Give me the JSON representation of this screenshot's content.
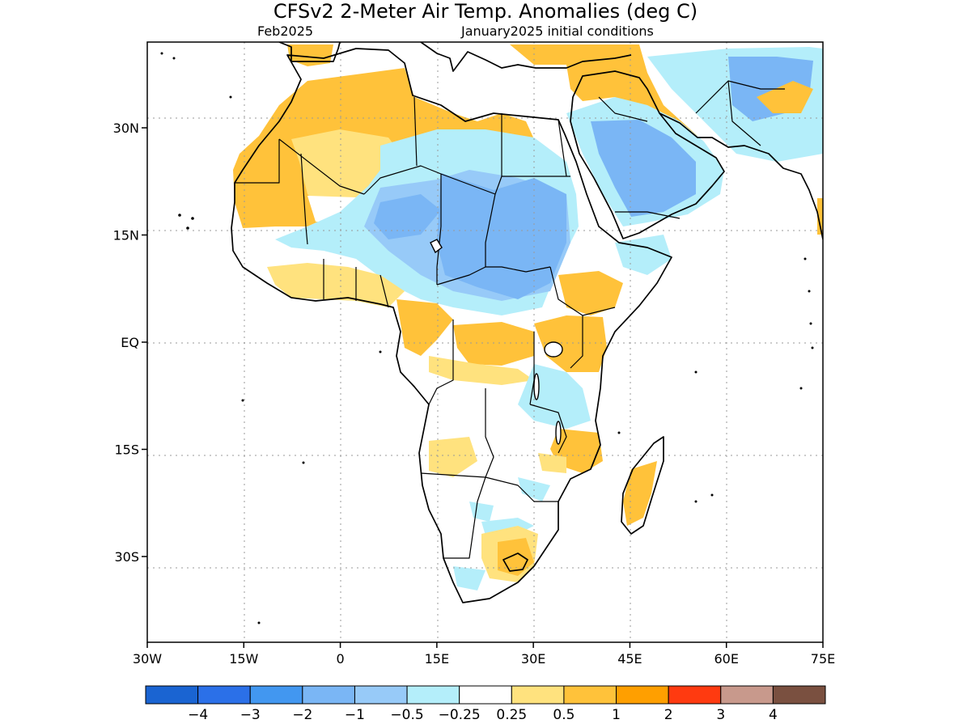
{
  "title": "CFSv2 2-Meter Air Temp. Anomalies (deg C)",
  "subtitle_left": "Feb2025",
  "subtitle_right": "January2025 initial conditions",
  "map": {
    "lon_range": [
      -30,
      75
    ],
    "lat_range": [
      -42,
      42
    ],
    "x_ticks": [
      {
        "lon": -30,
        "label": "30W"
      },
      {
        "lon": -15,
        "label": "15W"
      },
      {
        "lon": 0,
        "label": "0"
      },
      {
        "lon": 15,
        "label": "15E"
      },
      {
        "lon": 30,
        "label": "30E"
      },
      {
        "lon": 45,
        "label": "45E"
      },
      {
        "lon": 60,
        "label": "60E"
      },
      {
        "lon": 75,
        "label": "75E"
      }
    ],
    "y_ticks": [
      {
        "lat": 30,
        "label": "30N"
      },
      {
        "lat": 15,
        "label": "15N"
      },
      {
        "lat": 0,
        "label": "EQ"
      },
      {
        "lat": -15,
        "label": "15S"
      },
      {
        "lat": -30,
        "label": "30S"
      }
    ],
    "grid": true
  },
  "colorbar": {
    "colors": [
      "#1a64d2",
      "#2b70e8",
      "#4297f0",
      "#7ab6f5",
      "#97caf8",
      "#b4eefa",
      "#ffffff",
      "#ffe27e",
      "#ffc23a",
      "#ff9f00",
      "#ff3a10",
      "#c8998c",
      "#7a5040"
    ],
    "labels": [
      "-4",
      "-3",
      "-2",
      "-1",
      "-0.5",
      "-0.25",
      "0.25",
      "0.5",
      "1",
      "2",
      "3",
      "4"
    ]
  }
}
